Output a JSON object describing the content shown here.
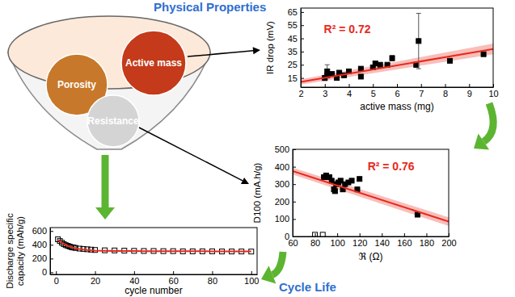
{
  "chart_data": [
    {
      "type": "scatter",
      "xlabel": "active mass (mg)",
      "ylabel": "IR drop (mV)",
      "xlim": [
        2,
        10
      ],
      "ylim": [
        8,
        68
      ],
      "xticks": [
        2,
        3,
        4,
        5,
        6,
        7,
        8,
        9,
        10
      ],
      "yticks": [
        15,
        25,
        35,
        45,
        55,
        65
      ],
      "series": [
        {
          "type": "band",
          "color": "#e8291c",
          "x": [
            2,
            10
          ],
          "lower": [
            10,
            33
          ],
          "upper": [
            14,
            41
          ]
        },
        {
          "type": "scatter",
          "marker": "square",
          "color": "#000000",
          "x": [
            3.0,
            3.1,
            3.1,
            3.3,
            3.5,
            3.6,
            3.8,
            4.0,
            4.5,
            4.5,
            5.0,
            5.1,
            5.3,
            5.6,
            5.8,
            6.8,
            6.9,
            8.2,
            9.6
          ],
          "values": [
            15,
            20,
            17,
            18,
            15,
            19,
            17,
            20,
            22,
            16,
            23,
            26,
            25,
            25,
            30,
            25,
            43,
            28,
            33
          ],
          "errors": [
            2,
            5,
            null,
            null,
            null,
            null,
            null,
            null,
            null,
            null,
            null,
            null,
            null,
            null,
            2,
            2,
            21,
            null,
            null
          ]
        },
        {
          "type": "line",
          "color": "#e8291c",
          "x": [
            2,
            10
          ],
          "values": [
            12,
            37
          ]
        }
      ],
      "annotations": [
        {
          "text": "R² = 0.72",
          "color": "#e8291c"
        }
      ]
    },
    {
      "type": "scatter",
      "xlabel": "ℜ (Ω)",
      "ylabel": "D100 (mA.h/g)",
      "xlim": [
        60,
        200
      ],
      "ylim": [
        0,
        500
      ],
      "xticks": [
        60,
        80,
        100,
        120,
        140,
        160,
        180,
        200
      ],
      "yticks": [
        0,
        100,
        200,
        300,
        400,
        500
      ],
      "series": [
        {
          "type": "band",
          "color": "#e8291c",
          "x": [
            60,
            200
          ],
          "lower": [
            355,
            60
          ],
          "upper": [
            395,
            110
          ]
        },
        {
          "type": "scatter",
          "marker": "square",
          "color": "#000000",
          "x": [
            88,
            90,
            93,
            95,
            97,
            98,
            99,
            101,
            103,
            105,
            107,
            110,
            113,
            118,
            120,
            172
          ],
          "values": [
            340,
            350,
            340,
            320,
            270,
            260,
            300,
            310,
            320,
            270,
            300,
            310,
            320,
            270,
            330,
            125
          ]
        },
        {
          "type": "scatter",
          "marker": "open_square",
          "color": "#000000",
          "x": [
            80,
            87
          ],
          "values": [
            10,
            10
          ]
        },
        {
          "type": "line",
          "color": "#e8291c",
          "x": [
            60,
            200
          ],
          "values": [
            375,
            85
          ]
        }
      ],
      "annotations": [
        {
          "text": "R² = 0.76",
          "color": "#e8291c"
        }
      ]
    },
    {
      "type": "scatter",
      "xlabel": "cycle number",
      "ylabel": [
        "Discharge specific",
        "capacity (mAh/g)"
      ],
      "xlim": [
        -3,
        103
      ],
      "ylim": [
        -30,
        650
      ],
      "xticks": [
        0,
        20,
        40,
        60,
        80,
        100
      ],
      "yticks": [
        0,
        200,
        400,
        600
      ],
      "series": [
        {
          "type": "scatter",
          "marker": "open_square",
          "color": "#000000",
          "x": [
            1,
            2,
            3,
            4,
            5,
            6,
            7,
            8,
            9,
            10,
            12,
            14,
            16,
            18,
            20,
            25,
            30,
            35,
            40,
            45,
            50,
            55,
            60,
            65,
            70,
            75,
            80,
            85,
            90,
            95,
            100
          ],
          "values": [
            480,
            455,
            430,
            410,
            395,
            385,
            375,
            365,
            360,
            355,
            345,
            340,
            335,
            330,
            325,
            320,
            318,
            315,
            312,
            310,
            310,
            308,
            308,
            305,
            305,
            305,
            305,
            303,
            303,
            303,
            302
          ]
        },
        {
          "type": "line",
          "color": "#e8291c",
          "x": [
            1,
            2,
            3,
            4,
            5,
            6,
            7,
            8,
            9,
            10,
            12,
            14,
            16,
            18,
            20,
            25,
            30,
            35,
            40,
            45,
            50,
            55,
            60,
            65,
            70,
            75,
            80,
            85,
            90,
            95,
            100
          ],
          "values": [
            470,
            450,
            430,
            413,
            398,
            385,
            374,
            364,
            356,
            349,
            338,
            330,
            324,
            320,
            317,
            313,
            311,
            310,
            309,
            308,
            308,
            307,
            307,
            306,
            306,
            306,
            305,
            305,
            305,
            305,
            305
          ]
        }
      ]
    }
  ],
  "diagram": {
    "title": "Physical Properties",
    "items": [
      {
        "label": "Porosity",
        "color": "#c8782a"
      },
      {
        "label": "Active mass",
        "color": "#c43a1a"
      },
      {
        "label": "Resistance",
        "color": "#d4d4d4"
      }
    ],
    "caption": "Cycle Life"
  }
}
